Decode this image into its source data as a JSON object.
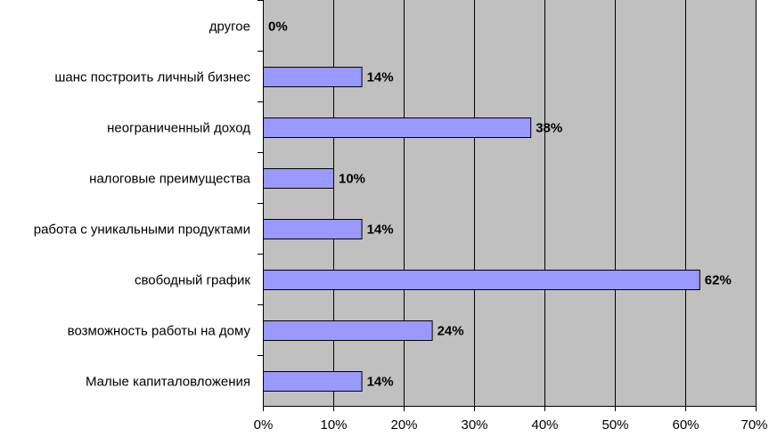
{
  "chart_data": {
    "type": "bar",
    "orientation": "horizontal",
    "categories": [
      "другое",
      "шанс построить личный бизнес",
      "неограниченный доход",
      "налоговые преимущества",
      "работа с уникальными продуктами",
      "свободный график",
      "возможность работы на дому",
      "Малые капиталовложения"
    ],
    "values": [
      0,
      14,
      38,
      10,
      14,
      62,
      24,
      14
    ],
    "data_labels": [
      "0%",
      "14%",
      "38%",
      "10%",
      "14%",
      "62%",
      "24%",
      "14%"
    ],
    "xlim": [
      0,
      70
    ],
    "x_ticks": [
      0,
      10,
      20,
      30,
      40,
      50,
      60,
      70
    ],
    "x_tick_labels": [
      "0%",
      "10%",
      "20%",
      "30%",
      "40%",
      "50%",
      "60%",
      "70%"
    ],
    "title": "",
    "xlabel": "",
    "ylabel": "",
    "grid": true,
    "legend": "none",
    "colors": {
      "bar_fill": "#9999ff",
      "bar_stroke": "#000000",
      "plot_background": "#c0c0c0",
      "gridline": "#000000",
      "text": "#000000"
    }
  }
}
